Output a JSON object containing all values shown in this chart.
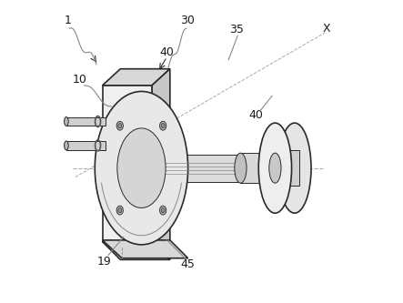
{
  "bg_color": "#ffffff",
  "line_color": "#2a2a2a",
  "light_gray": "#c8c8c8",
  "mid_gray": "#888888",
  "dark_gray": "#555555",
  "figsize": [
    4.43,
    3.33
  ],
  "dpi": 100
}
